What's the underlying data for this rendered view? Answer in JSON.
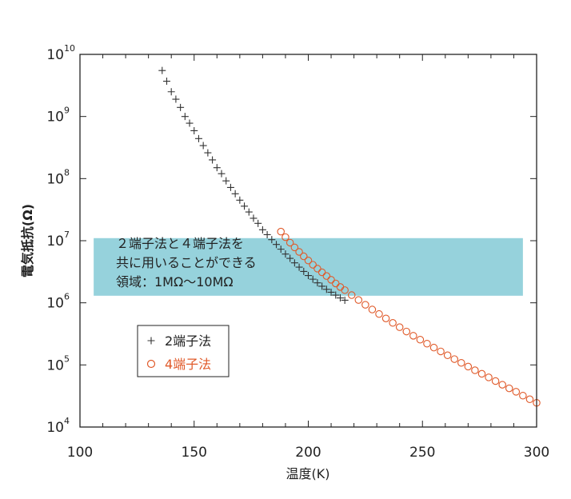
{
  "chart_data": {
    "type": "scatter",
    "title": "",
    "xlabel": "温度(K)",
    "ylabel": "電気抵抗(Ω)",
    "xlim": [
      100,
      300
    ],
    "ylim": [
      10000,
      10000000000
    ],
    "yscale": "log",
    "grid": false,
    "x_ticks": [
      "100",
      "150",
      "200",
      "250",
      "300"
    ],
    "y_ticks": [
      {
        "base": "10",
        "exp": "4"
      },
      {
        "base": "10",
        "exp": "5"
      },
      {
        "base": "10",
        "exp": "6"
      },
      {
        "base": "10",
        "exp": "7"
      },
      {
        "base": "10",
        "exp": "8"
      },
      {
        "base": "10",
        "exp": "9"
      },
      {
        "base": "10",
        "exp": "10"
      }
    ],
    "band": {
      "ymin": 1300000,
      "ymax": 11000000,
      "xmin": 106,
      "xmax": 294,
      "color": "#96d2dc",
      "lines": [
        "２端子法と４端子法を",
        "共に用いることができる",
        "領域：1MΩ～10MΩ"
      ]
    },
    "legend_position": "lower-left",
    "series": [
      {
        "name": "2端子法",
        "marker": "plus",
        "color": "#333333",
        "x": [
          136,
          138,
          140,
          142,
          144,
          146,
          148,
          150,
          152,
          154,
          156,
          158,
          160,
          162,
          164,
          166,
          168,
          170,
          172,
          174,
          176,
          178,
          180,
          182,
          184,
          186,
          188,
          190,
          192,
          194,
          196,
          198,
          200,
          202,
          204,
          206,
          208,
          210,
          212,
          214,
          216
        ],
        "y": [
          5500000000,
          3700000000,
          2500000000,
          1900000000,
          1400000000,
          1000000000,
          780000000,
          590000000,
          440000000,
          340000000,
          260000000,
          200000000,
          150000000,
          120000000,
          92000000,
          72000000,
          57000000,
          45000000,
          36000000,
          29000000,
          23000000,
          19000000,
          15000000,
          12500000,
          10400000,
          8700000,
          7300000,
          6100000,
          5200000,
          4400000,
          3750000,
          3200000,
          2750000,
          2400000,
          2100000,
          1850000,
          1650000,
          1480000,
          1330000,
          1200000,
          1100000
        ]
      },
      {
        "name": "4端子法",
        "marker": "circle",
        "color": "#e05a2a",
        "x": [
          188,
          190,
          192,
          194,
          196,
          198,
          200,
          202,
          204,
          206,
          208,
          210,
          212,
          214,
          216,
          219,
          222,
          225,
          228,
          231,
          234,
          237,
          240,
          243,
          246,
          249,
          252,
          255,
          258,
          261,
          264,
          267,
          270,
          273,
          276,
          279,
          282,
          285,
          288,
          291,
          294,
          297,
          300
        ],
        "y": [
          14000000,
          11400000,
          9300000,
          7800000,
          6600000,
          5600000,
          4800000,
          4100000,
          3550000,
          3100000,
          2700000,
          2350000,
          2050000,
          1800000,
          1600000,
          1330000,
          1110000,
          930000,
          780000,
          660000,
          560000,
          475000,
          405000,
          345000,
          295000,
          255000,
          220000,
          190000,
          165000,
          143000,
          124000,
          108000,
          94000,
          82000,
          72000,
          63000,
          55000,
          48000,
          42000,
          37000,
          32000,
          28000,
          24500
        ]
      }
    ]
  }
}
